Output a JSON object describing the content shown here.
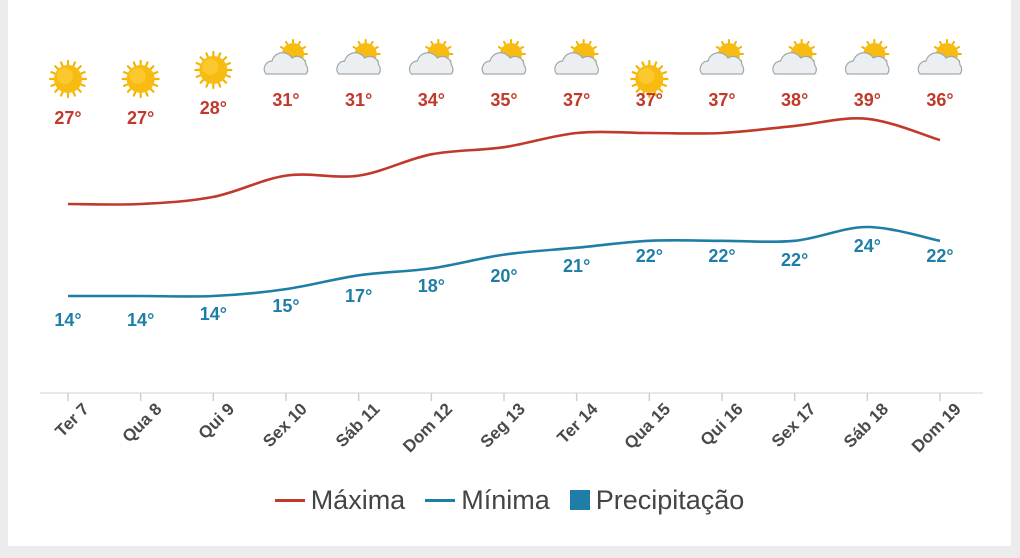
{
  "chart_data": {
    "type": "line",
    "categories": [
      "Ter 7",
      "Qua 8",
      "Qui 9",
      "Sex 10",
      "Sáb 11",
      "Dom 12",
      "Seg 13",
      "Ter 14",
      "Qua 15",
      "Qui 16",
      "Sex 17",
      "Sáb 18",
      "Dom 19"
    ],
    "icons": [
      "sun-icon",
      "sun-icon",
      "sun-icon",
      "partly-cloudy-icon",
      "partly-cloudy-icon",
      "partly-cloudy-icon",
      "partly-cloudy-icon",
      "partly-cloudy-icon",
      "sun-icon",
      "partly-cloudy-icon",
      "partly-cloudy-icon",
      "partly-cloudy-icon",
      "partly-cloudy-icon"
    ],
    "series": [
      {
        "name": "Máxima",
        "color": "#c0392b",
        "values": [
          27,
          27,
          28,
          31,
          31,
          34,
          35,
          37,
          37,
          37,
          38,
          39,
          36
        ]
      },
      {
        "name": "Mínima",
        "color": "#1f7ea6",
        "values": [
          14,
          14,
          14,
          15,
          17,
          18,
          20,
          21,
          22,
          22,
          22,
          24,
          22
        ]
      }
    ],
    "precipitation": {
      "name": "Precipitação",
      "color": "#1f7ea6"
    },
    "unit_suffix": "°",
    "grid": false,
    "legend_position": "bottom"
  }
}
